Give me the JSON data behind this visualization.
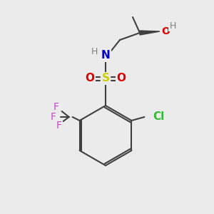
{
  "bg_color": "#ebebeb",
  "bond_color": "#404040",
  "bond_width": 1.5,
  "colors": {
    "N": "#0000cc",
    "O": "#dd0000",
    "S": "#cccc00",
    "Cl": "#33bb33",
    "F": "#cc44cc",
    "H": "#808080",
    "C": "#404040"
  },
  "font_size": 10,
  "font_size_small": 9
}
